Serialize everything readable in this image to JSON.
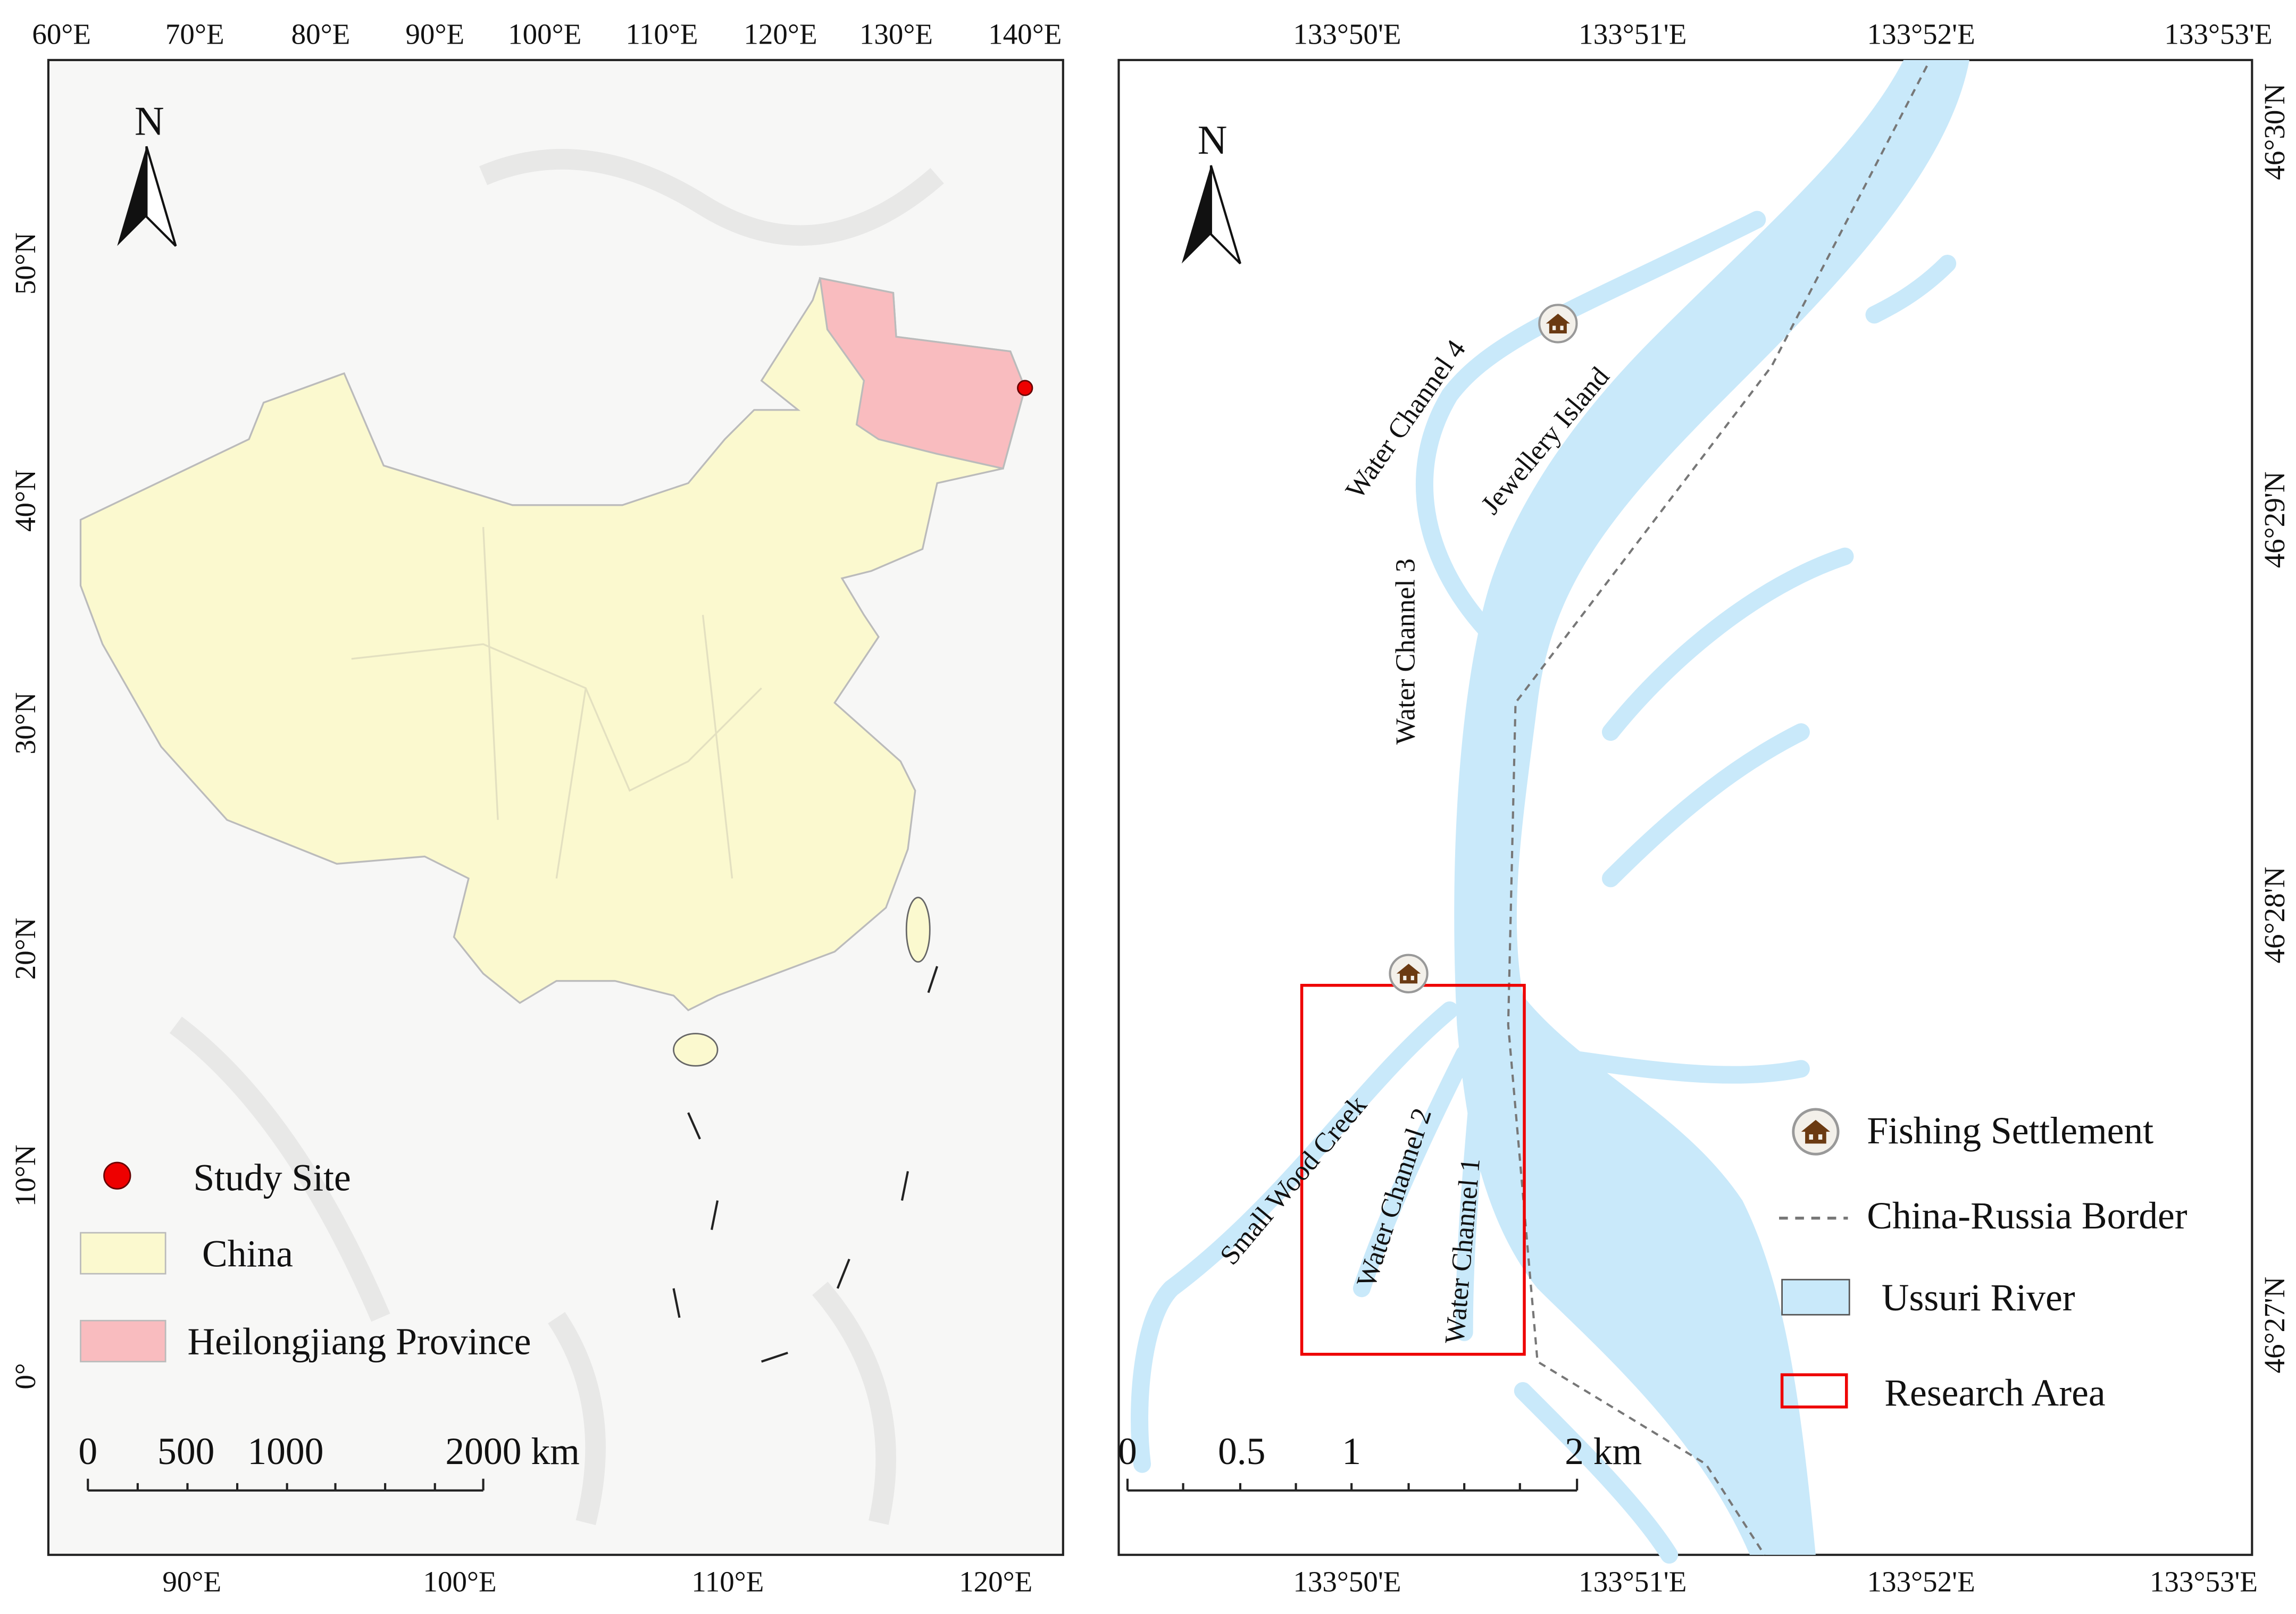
{
  "left_map": {
    "north": "N",
    "top_labels": [
      "60°E",
      "70°E",
      "80°E",
      "90°E",
      "100°E",
      "110°E",
      "120°E",
      "130°E",
      "140°E"
    ],
    "bottom_labels": [
      "90°E",
      "100°E",
      "110°E",
      "120°E"
    ],
    "left_labels": [
      "50°N",
      "40°N",
      "30°N",
      "20°N",
      "10°N",
      "0°"
    ],
    "legend": [
      "Study Site",
      "China",
      "Heilongjiang Province"
    ],
    "scale_labels": [
      "0",
      "500",
      "1000",
      "2000 km"
    ]
  },
  "right_map": {
    "north": "N",
    "top_labels": [
      "133°50'E",
      "133°51'E",
      "133°52'E",
      "133°53'E"
    ],
    "bottom_labels": [
      "133°50'E",
      "133°51'E",
      "133°52'E",
      "133°53'E"
    ],
    "right_labels": [
      "46°30'N",
      "46°29'N",
      "46°28'N",
      "46°27'N"
    ],
    "place_labels": [
      "Water Channel 4",
      "Jewellery Island",
      "Water Channel 3",
      "Small Wood Creek",
      "Water Channel 2",
      "Water Channel 1"
    ],
    "legend": [
      "Fishing Settlement",
      "China-Russia Border",
      "Ussuri River",
      "Research Area"
    ],
    "scale_labels": [
      "0",
      "0.5",
      "1",
      "2 km"
    ]
  }
}
